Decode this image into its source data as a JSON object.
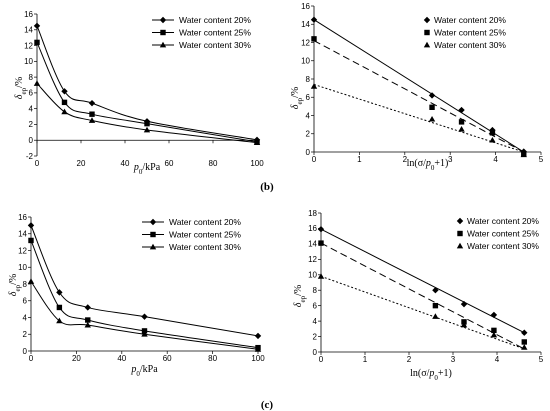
{
  "panel_labels": {
    "b": "(b)",
    "c": "(c)"
  },
  "series_styles": [
    {
      "marker": "diamond",
      "dash": ""
    },
    {
      "marker": "square",
      "dash": "7,4"
    },
    {
      "marker": "triangle",
      "dash": "2,2"
    }
  ],
  "chart_data": [
    {
      "type": "line",
      "xlabel": "p0/kPa",
      "ylabel": "δep/%",
      "xlim": [
        0,
        100
      ],
      "ylim": [
        -2,
        16
      ],
      "xticks": [
        "0",
        "20",
        "40",
        "60",
        "80",
        "100"
      ],
      "yticks": [
        "-2",
        "0",
        "2",
        "4",
        "6",
        "8",
        "10",
        "12",
        "14",
        "16"
      ],
      "legend_position": "top-right",
      "series": [
        {
          "name": "Water content 20%",
          "points": [
            [
              0,
              14.5
            ],
            [
              12.5,
              6.2
            ],
            [
              25,
              4.7
            ],
            [
              50,
              2.4
            ],
            [
              100,
              0.05
            ]
          ]
        },
        {
          "name": "Water content 25%",
          "points": [
            [
              0,
              12.4
            ],
            [
              12.5,
              4.8
            ],
            [
              25,
              3.3
            ],
            [
              50,
              2.1
            ],
            [
              100,
              -0.2
            ]
          ]
        },
        {
          "name": "Water content 30%",
          "points": [
            [
              0,
              7.2
            ],
            [
              12.5,
              3.6
            ],
            [
              25,
              2.5
            ],
            [
              50,
              1.3
            ],
            [
              100,
              -0.3
            ]
          ]
        }
      ]
    },
    {
      "type": "scatter",
      "xlabel": "ln(σ/p0+1)",
      "ylabel": "δep/%",
      "xlim": [
        0,
        5
      ],
      "ylim": [
        0,
        16
      ],
      "xticks": [
        "0",
        "1",
        "2",
        "3",
        "4",
        "5"
      ],
      "yticks": [
        "0",
        "2",
        "4",
        "6",
        "8",
        "10",
        "12",
        "14",
        "16"
      ],
      "legend_position": "top-right",
      "series": [
        {
          "name": "Water content 20%",
          "points": [
            [
              0,
              14.5
            ],
            [
              2.6,
              6.2
            ],
            [
              3.25,
              4.6
            ],
            [
              3.93,
              2.4
            ],
            [
              4.62,
              0.05
            ]
          ],
          "fit": [
            [
              0,
              14.5
            ],
            [
              4.62,
              0
            ]
          ]
        },
        {
          "name": "Water content 25%",
          "points": [
            [
              0,
              12.4
            ],
            [
              2.6,
              4.9
            ],
            [
              3.25,
              3.3
            ],
            [
              3.93,
              2.1
            ],
            [
              4.62,
              -0.2
            ]
          ],
          "fit": [
            [
              0,
              12.2
            ],
            [
              4.62,
              0
            ]
          ]
        },
        {
          "name": "Water content 30%",
          "points": [
            [
              0,
              7.2
            ],
            [
              2.6,
              3.6
            ],
            [
              3.25,
              2.5
            ],
            [
              3.93,
              1.3
            ],
            [
              4.62,
              -0.3
            ]
          ],
          "fit": [
            [
              0,
              7.4
            ],
            [
              4.62,
              0
            ]
          ]
        }
      ]
    },
    {
      "type": "line",
      "xlabel": "p0/kPa",
      "ylabel": "δep/%",
      "xlim": [
        0,
        100
      ],
      "ylim": [
        0,
        16
      ],
      "xticks": [
        "0",
        "20",
        "40",
        "60",
        "80",
        "100"
      ],
      "yticks": [
        "0",
        "2",
        "4",
        "6",
        "8",
        "10",
        "12",
        "14",
        "16"
      ],
      "legend_position": "top-right",
      "series": [
        {
          "name": "Water content 20%",
          "points": [
            [
              0,
              15.0
            ],
            [
              12.5,
              7.0
            ],
            [
              25,
              5.2
            ],
            [
              50,
              4.1
            ],
            [
              100,
              1.8
            ]
          ]
        },
        {
          "name": "Water content 25%",
          "points": [
            [
              0,
              13.2
            ],
            [
              12.5,
              5.2
            ],
            [
              25,
              3.7
            ],
            [
              50,
              2.4
            ],
            [
              100,
              0.4
            ]
          ]
        },
        {
          "name": "Water content 30%",
          "points": [
            [
              0,
              8.3
            ],
            [
              12.5,
              3.6
            ],
            [
              25,
              3.1
            ],
            [
              50,
              2.0
            ],
            [
              100,
              0.2
            ]
          ]
        }
      ]
    },
    {
      "type": "scatter",
      "xlabel": "ln(σ/p0+1)",
      "ylabel": "δep/%",
      "xlim": [
        0,
        5
      ],
      "ylim": [
        0,
        18
      ],
      "xticks": [
        "0",
        "1",
        "2",
        "3",
        "4",
        "5"
      ],
      "yticks": [
        "0",
        "2",
        "4",
        "6",
        "8",
        "10",
        "12",
        "14",
        "16",
        "18"
      ],
      "legend_position": "top-right",
      "series": [
        {
          "name": "Water content 20%",
          "points": [
            [
              0,
              15.9
            ],
            [
              2.6,
              8.0
            ],
            [
              3.25,
              6.2
            ],
            [
              3.93,
              4.8
            ],
            [
              4.62,
              2.5
            ]
          ],
          "fit": [
            [
              0,
              15.9
            ],
            [
              4.62,
              2.5
            ]
          ]
        },
        {
          "name": "Water content 25%",
          "points": [
            [
              0,
              14.1
            ],
            [
              2.6,
              6.0
            ],
            [
              3.25,
              3.9
            ],
            [
              3.93,
              2.8
            ],
            [
              4.62,
              1.3
            ]
          ],
          "fit": [
            [
              0,
              14.1
            ],
            [
              4.62,
              0.4
            ]
          ]
        },
        {
          "name": "Water content 30%",
          "points": [
            [
              0,
              9.8
            ],
            [
              2.6,
              4.6
            ],
            [
              3.25,
              3.5
            ],
            [
              3.93,
              2.2
            ],
            [
              4.62,
              0.6
            ]
          ],
          "fit": [
            [
              0,
              9.8
            ],
            [
              4.62,
              0.4
            ]
          ]
        }
      ]
    }
  ]
}
